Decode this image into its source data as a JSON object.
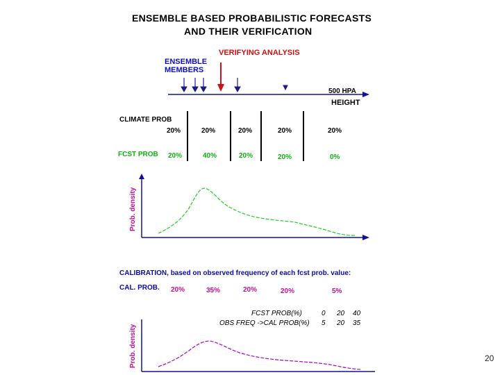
{
  "title": {
    "line1": "ENSEMBLE BASED PROBABILISTIC FORECASTS",
    "line2": "AND THEIR VERIFICATION"
  },
  "labels": {
    "verifying_analysis": "VERIFYING ANALYSIS",
    "ensemble_line1": "ENSEMBLE",
    "ensemble_line2": "MEMBERS",
    "hpa": "500 HPA",
    "height": "HEIGHT",
    "climate_prob": "CLIMATE PROB",
    "fcst_prob": "FCST PROB",
    "prob_density": "Prob. density",
    "calibration": "CALIBRATION, based on observed frequency of each fcst prob. value:",
    "cal_prob": "CAL. PROB."
  },
  "climate_values": [
    "20%",
    "20%",
    "20%",
    "20%",
    "20%"
  ],
  "fcst_values": [
    "20%",
    "40%",
    "20%",
    "20%",
    "0%"
  ],
  "cal_values": [
    "20%",
    "35%",
    "20%",
    "20%",
    "5%"
  ],
  "table": {
    "row1_label": "FCST PROB(%)",
    "row1_values": [
      "0",
      "20",
      "40"
    ],
    "row2_label": "OBS FREQ ->CAL PROB(%)",
    "row2_values": [
      "5",
      "20",
      "35"
    ]
  },
  "colors": {
    "ensemble_arrow": "#1a1a8a",
    "analysis_arrow": "#d01010",
    "forecast_curve": "#22cc22",
    "calibrated_curve": "#aa00cc",
    "axis": "#1010a0"
  },
  "page_number": "20"
}
